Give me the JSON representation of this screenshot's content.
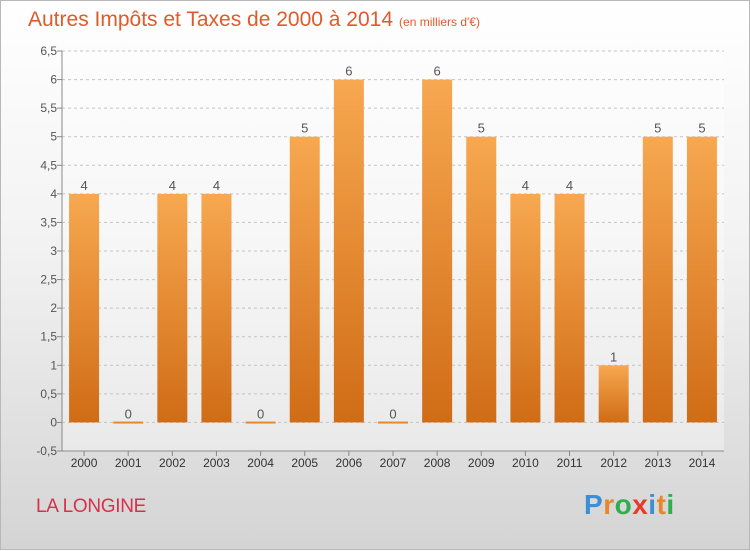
{
  "chart_data": {
    "type": "bar",
    "title": "Autres Impôts et Taxes de 2000 à 2014",
    "subtitle": "(en milliers d'€)",
    "categories": [
      "2000",
      "2001",
      "2002",
      "2003",
      "2004",
      "2005",
      "2006",
      "2007",
      "2008",
      "2009",
      "2010",
      "2011",
      "2012",
      "2013",
      "2014"
    ],
    "values": [
      4,
      0,
      4,
      4,
      0,
      5,
      6,
      0,
      6,
      5,
      4,
      4,
      1,
      5,
      5
    ],
    "ylim": [
      -0.5,
      6.5
    ],
    "yticks": [
      "-0,5",
      "0",
      "0,5",
      "1",
      "1,5",
      "2",
      "2,5",
      "3",
      "3,5",
      "4",
      "4,5",
      "5",
      "5,5",
      "6",
      "6,5"
    ],
    "grid": "horizontal dashed",
    "xlabel": "",
    "ylabel": "",
    "bar_color": "#e8862e"
  },
  "place": "LA LONGINE",
  "logo": {
    "text": "Proxiti",
    "colors": [
      "#3a8fd6",
      "#e8862e",
      "#2fae4e",
      "#e63a2a",
      "#3a8fd6",
      "#e8862e",
      "#2fae4e"
    ]
  }
}
